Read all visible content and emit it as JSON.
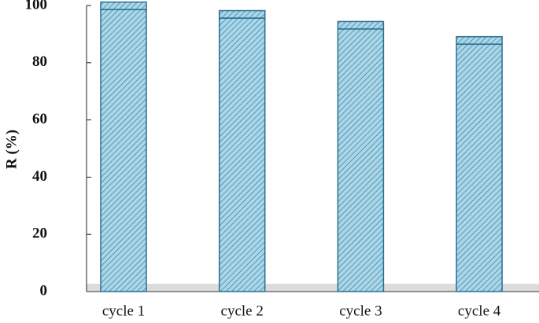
{
  "chart_data": {
    "type": "bar",
    "y_label": "R (%)",
    "categories": [
      "cycle 1",
      "cycle 2",
      "cycle 3",
      "cycle 4"
    ],
    "values": [
      98.6,
      95.6,
      91.8,
      86.5
    ],
    "errors": [
      2.6,
      2.6,
      2.6,
      2.6
    ],
    "color": "#a9d6e8",
    "ylim": [
      0,
      100
    ],
    "yticks": [
      0,
      20,
      40,
      60,
      80,
      100
    ]
  }
}
